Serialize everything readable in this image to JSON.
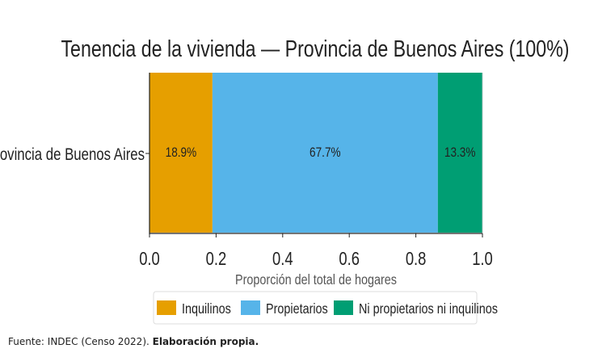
{
  "chart_data": {
    "type": "bar",
    "orientation": "horizontal-stacked",
    "title": "Tenencia de la vivienda — Provincia de Buenos Aires (100%)",
    "xlabel": "Proporción del total de hogares",
    "ylabel": "",
    "categories": [
      "Provincia de Buenos Aires"
    ],
    "series": [
      {
        "name": "Inquilinos",
        "values": [
          0.189
        ],
        "label": "18.9%",
        "color": "#E69F00"
      },
      {
        "name": "Propietarios",
        "values": [
          0.677
        ],
        "label": "67.7%",
        "color": "#56B4E9"
      },
      {
        "name": "Ni propietarios ni inquilinos",
        "values": [
          0.133
        ],
        "label": "13.3%",
        "color": "#009E73"
      }
    ],
    "xlim": [
      0,
      1
    ],
    "xticks": [
      0,
      0.2,
      0.4,
      0.6,
      0.8,
      1.0
    ],
    "xtick_labels": [
      "0.0",
      "0.2",
      "0.4",
      "0.6",
      "0.8",
      "1.0"
    ],
    "grid": true,
    "legend_position": "bottom"
  },
  "footer": {
    "source": "Fuente: INDEC (Censo 2022).",
    "note": "Elaboración propia."
  }
}
